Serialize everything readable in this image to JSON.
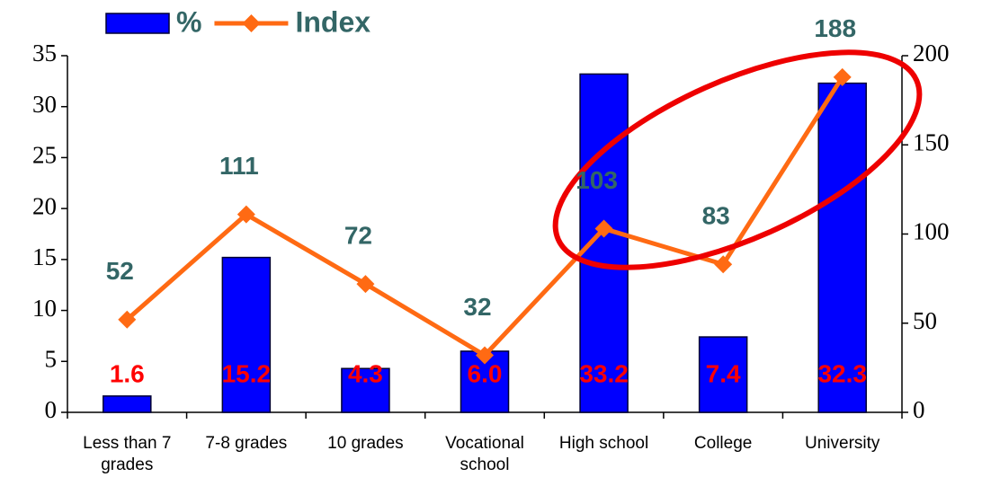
{
  "chart_data": {
    "type": "bar",
    "categories": [
      "Less than 7 grades",
      "7-8 grades",
      "10 grades",
      "Vocational school",
      "High school",
      "College",
      "University"
    ],
    "series": [
      {
        "name": "%",
        "color": "#0000ff",
        "values": [
          1.6,
          15.2,
          4.3,
          6.0,
          33.2,
          7.4,
          32.3
        ],
        "value_labels": [
          "1.6",
          "15.2",
          "4.3",
          "6.0",
          "33.2",
          "7.4",
          "32.3"
        ]
      },
      {
        "name": "Index",
        "type": "line",
        "axis": "y2",
        "color": "#ff6a13",
        "values": [
          52,
          111,
          72,
          32,
          103,
          83,
          188
        ]
      }
    ],
    "ylim": [
      0,
      35
    ],
    "yticks": [
      0,
      5,
      10,
      15,
      20,
      25,
      30,
      35
    ],
    "y2lim": [
      0,
      200
    ],
    "y2ticks": [
      0,
      50,
      100,
      150,
      200
    ],
    "legend": "top-left"
  }
}
